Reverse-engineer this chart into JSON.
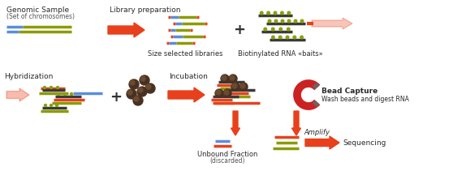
{
  "bg_color": "#ffffff",
  "orange_red": "#E8401C",
  "blue": "#5B8DD9",
  "olive": "#8B9B00",
  "dark_gray": "#3A3A3A",
  "bead_color": "#4A3020",
  "bead_highlight": "#6A4A30",
  "magnet_color": "#CC2222",
  "magnet_gray": "#666666",
  "light_orange_arrow": "#F0A080",
  "figsize": [
    5.74,
    2.28
  ],
  "dpi": 100,
  "texts": {
    "genomic_sample": "Genomic Sample",
    "set_chromosomes": "(Set of chromosomes)",
    "library_prep": "Library preparation",
    "size_selected": "Size selected libraries",
    "biotinylated": "Biotinylated RNA «baits»",
    "hybridization": "Hybridization",
    "incubation": "Incubation",
    "bead_capture": "Bead Capture",
    "wash_beads": "Wash beads and digest RNA",
    "unbound": "Unbound Fraction",
    "discarded": "(discarded)",
    "amplify": "Amplify",
    "sequencing": "Sequencing"
  }
}
